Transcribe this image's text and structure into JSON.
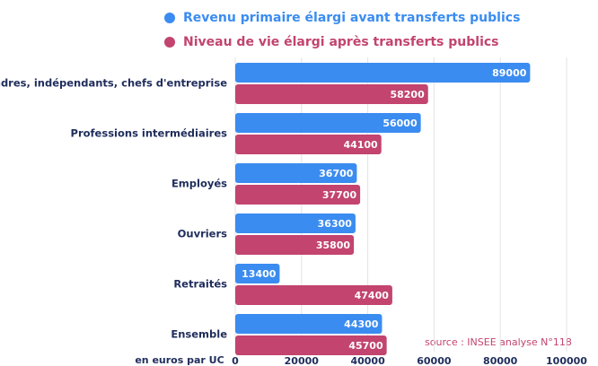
{
  "chart_data": {
    "type": "barh",
    "categories": [
      "Cadres, indépendants, chefs d'entreprise",
      "Professions intermédiaires",
      "Employés",
      "Ouvriers",
      "Retraités",
      "Ensemble"
    ],
    "series": [
      {
        "name": "Revenu primaire élargi avant transferts publics",
        "color": "#3b8cf0",
        "values": [
          89000,
          56000,
          36700,
          36300,
          13400,
          44300
        ]
      },
      {
        "name": "Niveau de vie élargi après transferts publics",
        "color": "#c2446f",
        "values": [
          58200,
          44100,
          37700,
          35800,
          47400,
          45700
        ]
      }
    ],
    "x_label": "en euros par UC",
    "annotation": "source :  INSEE  analyse N°118",
    "xlim": [
      0,
      100000
    ],
    "xticks": [
      0,
      20000,
      40000,
      60000,
      80000,
      100000
    ],
    "grid": true,
    "legend": "top"
  }
}
